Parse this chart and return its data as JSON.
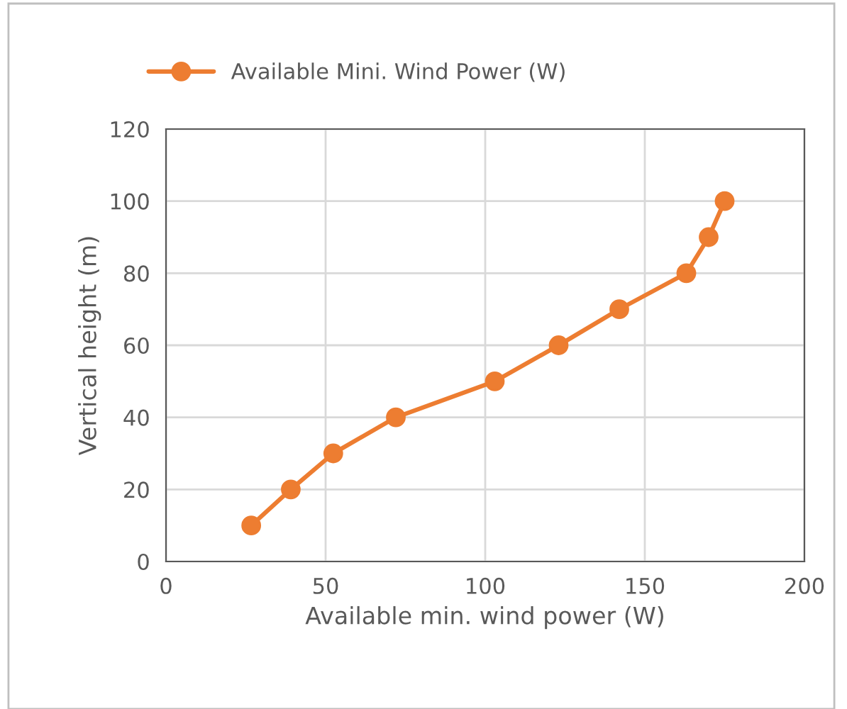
{
  "chart_data": {
    "type": "line",
    "xlabel": "Available min. wind power (W)",
    "ylabel": "Vertical height (m)",
    "x": [
      26.7,
      39.1,
      52.4,
      72,
      103,
      123,
      142,
      163,
      170,
      175
    ],
    "series": [
      {
        "name": "Available Mini. Wind Power (W)",
        "color": "#ed7d31",
        "values": [
          10,
          20,
          30,
          40,
          50,
          60,
          70,
          80,
          90,
          100
        ]
      }
    ],
    "xlim": [
      0,
      200
    ],
    "xticks": [
      0,
      50,
      100,
      150,
      200
    ],
    "ylim": [
      0,
      120
    ],
    "yticks": [
      0,
      20,
      40,
      60,
      80,
      100,
      120
    ],
    "grid": true,
    "legend": "top",
    "marker": "circle",
    "line_style": "solid"
  }
}
